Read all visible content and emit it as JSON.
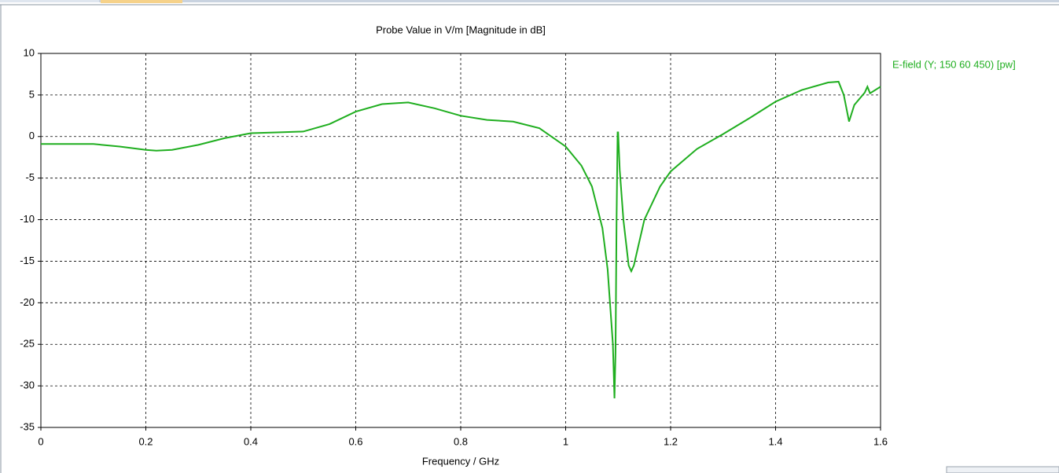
{
  "chart_data": {
    "type": "line",
    "title": "Probe Value in V/m [Magnitude in dB]",
    "x_label": "Frequency / GHz",
    "x": [
      0,
      0.1,
      0.15,
      0.2,
      0.22,
      0.25,
      0.3,
      0.35,
      0.4,
      0.45,
      0.5,
      0.55,
      0.6,
      0.65,
      0.7,
      0.75,
      0.8,
      0.85,
      0.9,
      0.95,
      1.0,
      1.03,
      1.05,
      1.07,
      1.08,
      1.09,
      1.093,
      1.095,
      1.097,
      1.099,
      1.1,
      1.103,
      1.11,
      1.12,
      1.125,
      1.13,
      1.15,
      1.18,
      1.2,
      1.25,
      1.3,
      1.35,
      1.4,
      1.45,
      1.5,
      1.52,
      1.53,
      1.54,
      1.55,
      1.57,
      1.575,
      1.58,
      1.6
    ],
    "series": [
      {
        "name": "E-field (Y; 150 60 450) [pw]",
        "color": "#1fae1f",
        "values": [
          -0.9,
          -0.9,
          -1.2,
          -1.6,
          -1.7,
          -1.6,
          -1.0,
          -0.2,
          0.4,
          0.5,
          0.6,
          1.5,
          3.0,
          3.9,
          4.1,
          3.4,
          2.5,
          2.0,
          1.8,
          1.0,
          -1.2,
          -3.5,
          -6.0,
          -11,
          -16,
          -25,
          -31.5,
          -26,
          -10,
          0.5,
          0.5,
          -4,
          -10,
          -15.5,
          -16.2,
          -15.5,
          -10,
          -6,
          -4.2,
          -1.5,
          0.3,
          2.2,
          4.2,
          5.6,
          6.5,
          6.6,
          5,
          1.8,
          3.8,
          5.3,
          6.0,
          5.2,
          6.0
        ]
      }
    ],
    "xlim": [
      0,
      1.6
    ],
    "xticks": [
      0,
      0.2,
      0.4,
      0.6,
      0.8,
      1,
      1.2,
      1.4,
      1.6
    ],
    "ylim": [
      -35,
      10
    ],
    "yticks": [
      -35,
      -30,
      -25,
      -20,
      -15,
      -10,
      -5,
      0,
      5,
      10
    ],
    "grid": true
  }
}
